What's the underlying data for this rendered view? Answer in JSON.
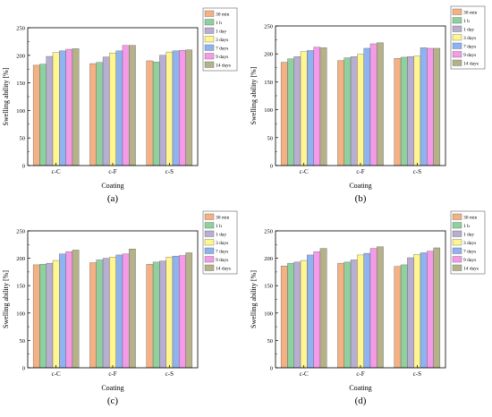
{
  "colors": {
    "30 min": "#f4b183",
    "1 h": "#8fd19e",
    "1 day": "#b8aed3",
    "3 days": "#fff68f",
    "7 days": "#8fb3f0",
    "9 days": "#f59ae8",
    "14 days": "#b5b28a"
  },
  "chart_data": [
    {
      "type": "bar",
      "panel_label": "(a)",
      "title": "",
      "xlabel": "Coating",
      "ylabel": "Swelling ability [%]",
      "ylim": [
        0,
        250
      ],
      "yticks": [
        0,
        50,
        100,
        150,
        200,
        250
      ],
      "legend_position": "top-right",
      "grid": false,
      "categories": [
        "c-C",
        "c-F",
        "c-S"
      ],
      "series": [
        {
          "name": "30 min",
          "values": [
            182,
            185,
            190
          ]
        },
        {
          "name": "1 h",
          "values": [
            184,
            187,
            188
          ]
        },
        {
          "name": "1 day",
          "values": [
            198,
            197,
            200
          ]
        },
        {
          "name": "3 days",
          "values": [
            205,
            204,
            206
          ]
        },
        {
          "name": "7 days",
          "values": [
            208,
            208,
            208
          ]
        },
        {
          "name": "9 days",
          "values": [
            211,
            218,
            209
          ]
        },
        {
          "name": "14 days",
          "values": [
            212,
            218,
            210
          ]
        }
      ]
    },
    {
      "type": "bar",
      "panel_label": "(b)",
      "title": "",
      "xlabel": "Coating",
      "ylabel": "Swelling ability [%]",
      "ylim": [
        0,
        250
      ],
      "yticks": [
        0,
        50,
        100,
        150,
        200,
        250
      ],
      "legend_position": "top-right",
      "grid": false,
      "categories": [
        "c-C",
        "c-F",
        "c-S"
      ],
      "series": [
        {
          "name": "30 min",
          "values": [
            185,
            188,
            192
          ]
        },
        {
          "name": "1 h",
          "values": [
            191,
            193,
            194
          ]
        },
        {
          "name": "1 day",
          "values": [
            195,
            195,
            195
          ]
        },
        {
          "name": "3 days",
          "values": [
            204,
            199,
            196
          ]
        },
        {
          "name": "7 days",
          "values": [
            206,
            210,
            211
          ]
        },
        {
          "name": "9 days",
          "values": [
            212,
            218,
            210
          ]
        },
        {
          "name": "14 days",
          "values": [
            211,
            220,
            210
          ]
        }
      ]
    },
    {
      "type": "bar",
      "panel_label": "(c)",
      "title": "",
      "xlabel": "Coating",
      "ylabel": "Swelling ability [%]",
      "ylim": [
        0,
        250
      ],
      "yticks": [
        0,
        50,
        100,
        150,
        200,
        250
      ],
      "legend_position": "top-right",
      "grid": false,
      "categories": [
        "c-C",
        "c-F",
        "c-S"
      ],
      "series": [
        {
          "name": "30 min",
          "values": [
            188,
            192,
            189
          ]
        },
        {
          "name": "1 h",
          "values": [
            189,
            197,
            193
          ]
        },
        {
          "name": "1 day",
          "values": [
            191,
            200,
            195
          ]
        },
        {
          "name": "3 days",
          "values": [
            196,
            202,
            202
          ]
        },
        {
          "name": "7 days",
          "values": [
            208,
            206,
            204
          ]
        },
        {
          "name": "9 days",
          "values": [
            212,
            208,
            205
          ]
        },
        {
          "name": "14 days",
          "values": [
            215,
            217,
            210
          ]
        }
      ]
    },
    {
      "type": "bar",
      "panel_label": "(d)",
      "title": "",
      "xlabel": "Coating",
      "ylabel": "Swelling ability [%]",
      "ylim": [
        0,
        250
      ],
      "yticks": [
        0,
        50,
        100,
        150,
        200,
        250
      ],
      "legend_position": "top-right",
      "grid": false,
      "categories": [
        "c-C",
        "c-F",
        "c-S"
      ],
      "series": [
        {
          "name": "30 min",
          "values": [
            186,
            191,
            185
          ]
        },
        {
          "name": "1 h",
          "values": [
            191,
            193,
            188
          ]
        },
        {
          "name": "1 day",
          "values": [
            193,
            197,
            201
          ]
        },
        {
          "name": "3 days",
          "values": [
            196,
            206,
            207
          ]
        },
        {
          "name": "7 days",
          "values": [
            206,
            209,
            210
          ]
        },
        {
          "name": "9 days",
          "values": [
            212,
            218,
            213
          ]
        },
        {
          "name": "14 days",
          "values": [
            218,
            221,
            219
          ]
        }
      ]
    }
  ]
}
